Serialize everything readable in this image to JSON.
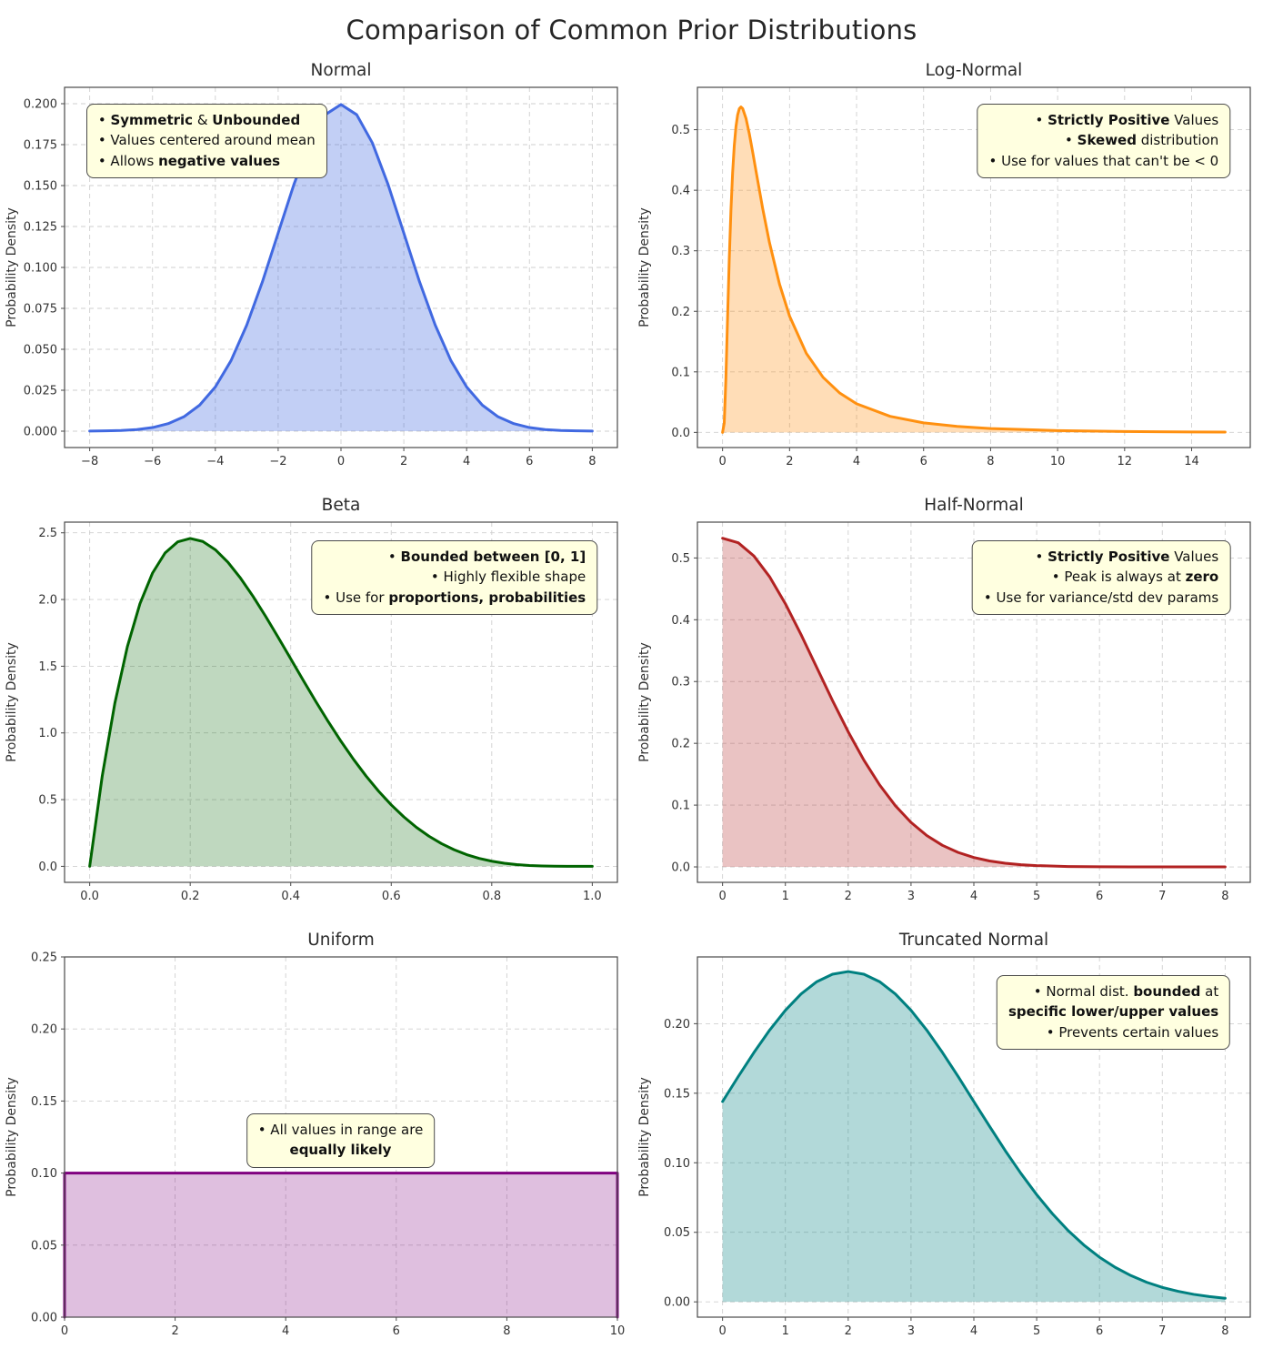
{
  "page": {
    "title": "Comparison of Common Prior Distributions"
  },
  "chart_data": [
    {
      "id": "normal",
      "type": "area",
      "title": "Normal",
      "xlabel": "",
      "ylabel": "Probability Density",
      "grid": true,
      "line_color": "#4169e1",
      "fill_color": "#4169e1",
      "fill_opacity": 0.32,
      "xlim": [
        -8.8,
        8.8
      ],
      "ylim": [
        -0.01,
        0.21
      ],
      "xticks": {
        "values": [
          -8,
          -6,
          -4,
          -2,
          0,
          2,
          4,
          6,
          8
        ],
        "labels": [
          "−8",
          "−6",
          "−4",
          "−2",
          "0",
          "2",
          "4",
          "6",
          "8"
        ]
      },
      "yticks": {
        "values": [
          0,
          0.025,
          0.05,
          0.075,
          0.1,
          0.125,
          0.15,
          0.175,
          0.2
        ],
        "labels": [
          "0.000",
          "0.025",
          "0.050",
          "0.075",
          "0.100",
          "0.125",
          "0.150",
          "0.175",
          "0.200"
        ]
      },
      "x": [
        -8,
        -7.5,
        -7,
        -6.5,
        -6,
        -5.5,
        -5,
        -4.5,
        -4,
        -3.5,
        -3,
        -2.5,
        -2,
        -1.5,
        -1,
        -0.5,
        0,
        0.5,
        1,
        1.5,
        2,
        2.5,
        3,
        3.5,
        4,
        4.5,
        5,
        5.5,
        6,
        6.5,
        7,
        7.5,
        8
      ],
      "y": [
        0.0001,
        0.0002,
        0.0004,
        0.001,
        0.0022,
        0.0046,
        0.0088,
        0.0159,
        0.027,
        0.0431,
        0.0648,
        0.0913,
        0.121,
        0.1506,
        0.176,
        0.1933,
        0.1995,
        0.1933,
        0.176,
        0.1506,
        0.121,
        0.0913,
        0.0648,
        0.0431,
        0.027,
        0.0159,
        0.0088,
        0.0046,
        0.0022,
        0.001,
        0.0004,
        0.0002,
        0.0001
      ],
      "annotation": {
        "anchor": "tl",
        "fx": 0.04,
        "fy": 0.955,
        "align": "left",
        "lines": [
          [
            {
              "t": "• ",
              "b": false
            },
            {
              "t": "Symmetric",
              "b": true
            },
            {
              "t": " & ",
              "b": false
            },
            {
              "t": "Unbounded",
              "b": true
            }
          ],
          [
            {
              "t": "• Values centered around mean",
              "b": false
            }
          ],
          [
            {
              "t": "• Allows ",
              "b": false
            },
            {
              "t": "negative values",
              "b": true
            }
          ]
        ]
      }
    },
    {
      "id": "lognormal",
      "type": "area",
      "title": "Log-Normal",
      "xlabel": "",
      "ylabel": "Probability Density",
      "grid": true,
      "line_color": "#ff9010",
      "fill_color": "#ff9010",
      "fill_opacity": 0.3,
      "xlim": [
        -0.75,
        15.75
      ],
      "ylim": [
        -0.025,
        0.57
      ],
      "xticks": {
        "values": [
          0,
          2,
          4,
          6,
          8,
          10,
          12,
          14
        ],
        "labels": [
          "0",
          "2",
          "4",
          "6",
          "8",
          "10",
          "12",
          "14"
        ]
      },
      "yticks": {
        "values": [
          0,
          0.1,
          0.2,
          0.3,
          0.4,
          0.5
        ],
        "labels": [
          "0.0",
          "0.1",
          "0.2",
          "0.3",
          "0.4",
          "0.5"
        ]
      },
      "x": [
        0,
        0.05,
        0.1,
        0.15,
        0.2,
        0.25,
        0.3,
        0.35,
        0.4,
        0.45,
        0.5,
        0.55,
        0.6,
        0.7,
        0.8,
        0.9,
        1,
        1.2,
        1.4,
        1.7,
        2,
        2.5,
        3,
        3.5,
        4,
        5,
        6,
        7,
        8,
        10,
        12,
        14,
        15
      ],
      "y": [
        0,
        0.0154,
        0.0894,
        0.1897,
        0.2859,
        0.3663,
        0.4284,
        0.4739,
        0.5049,
        0.5244,
        0.5346,
        0.5376,
        0.535,
        0.5186,
        0.4929,
        0.4628,
        0.4312,
        0.3692,
        0.3136,
        0.2449,
        0.1921,
        0.1306,
        0.091,
        0.0649,
        0.0473,
        0.0266,
        0.0158,
        0.0099,
        0.0064,
        0.003,
        0.0015,
        0.0008,
        0.0006
      ],
      "annotation": {
        "anchor": "tr",
        "fx": 0.965,
        "fy": 0.955,
        "align": "right",
        "lines": [
          [
            {
              "t": "• ",
              "b": false
            },
            {
              "t": "Strictly Positive",
              "b": true
            },
            {
              "t": " Values",
              "b": false
            }
          ],
          [
            {
              "t": "• ",
              "b": false
            },
            {
              "t": "Skewed",
              "b": true
            },
            {
              "t": " distribution",
              "b": false
            }
          ],
          [
            {
              "t": "• Use for values that can't be < 0",
              "b": false
            }
          ]
        ]
      }
    },
    {
      "id": "beta",
      "type": "area",
      "title": "Beta",
      "xlabel": "",
      "ylabel": "Probability Density",
      "grid": true,
      "line_color": "#006400",
      "fill_color": "#006400",
      "fill_opacity": 0.25,
      "xlim": [
        -0.05,
        1.05
      ],
      "ylim": [
        -0.12,
        2.58
      ],
      "xticks": {
        "values": [
          0,
          0.2,
          0.4,
          0.6,
          0.8,
          1.0
        ],
        "labels": [
          "0.0",
          "0.2",
          "0.4",
          "0.6",
          "0.8",
          "1.0"
        ]
      },
      "yticks": {
        "values": [
          0,
          0.5,
          1,
          1.5,
          2,
          2.5
        ],
        "labels": [
          "0.0",
          "0.5",
          "1.0",
          "1.5",
          "2.0",
          "2.5"
        ]
      },
      "x": [
        0,
        0.025,
        0.05,
        0.075,
        0.1,
        0.125,
        0.15,
        0.175,
        0.2,
        0.225,
        0.25,
        0.275,
        0.3,
        0.325,
        0.35,
        0.375,
        0.4,
        0.425,
        0.45,
        0.475,
        0.5,
        0.525,
        0.55,
        0.575,
        0.6,
        0.625,
        0.65,
        0.675,
        0.7,
        0.725,
        0.75,
        0.775,
        0.8,
        0.825,
        0.85,
        0.875,
        0.9,
        0.925,
        0.95,
        0.975,
        1
      ],
      "y": [
        0,
        0.6778,
        1.2217,
        1.6472,
        1.9683,
        2.1982,
        2.349,
        2.4321,
        2.4576,
        2.4351,
        2.373,
        2.2793,
        2.1609,
        2.024,
        1.8743,
        1.7166,
        1.5552,
        1.3937,
        1.2353,
        1.0826,
        0.9375,
        0.8018,
        0.6766,
        0.5628,
        0.4608,
        0.3708,
        0.2926,
        0.2259,
        0.1701,
        0.1244,
        0.0879,
        0.0596,
        0.0384,
        0.0232,
        0.0129,
        0.0064,
        0.0027,
        0.0009,
        0.0002,
        0.0001,
        0
      ],
      "annotation": {
        "anchor": "tr",
        "fx": 0.965,
        "fy": 0.95,
        "align": "right",
        "lines": [
          [
            {
              "t": "• ",
              "b": false
            },
            {
              "t": "Bounded between [0, 1]",
              "b": true
            }
          ],
          [
            {
              "t": "• Highly flexible shape",
              "b": false
            }
          ],
          [
            {
              "t": "• Use for ",
              "b": false
            },
            {
              "t": "proportions, probabilities",
              "b": true
            }
          ]
        ]
      }
    },
    {
      "id": "halfnormal",
      "type": "area",
      "title": "Half-Normal",
      "xlabel": "",
      "ylabel": "Probability Density",
      "grid": true,
      "line_color": "#b22222",
      "fill_color": "#b22222",
      "fill_opacity": 0.27,
      "xlim": [
        -0.4,
        8.4
      ],
      "ylim": [
        -0.025,
        0.558
      ],
      "xticks": {
        "values": [
          0,
          1,
          2,
          3,
          4,
          5,
          6,
          7,
          8
        ],
        "labels": [
          "0",
          "1",
          "2",
          "3",
          "4",
          "5",
          "6",
          "7",
          "8"
        ]
      },
      "yticks": {
        "values": [
          0,
          0.1,
          0.2,
          0.3,
          0.4,
          0.5
        ],
        "labels": [
          "0.0",
          "0.1",
          "0.2",
          "0.3",
          "0.4",
          "0.5"
        ]
      },
      "x": [
        0,
        0.25,
        0.5,
        0.75,
        1,
        1.25,
        1.5,
        1.75,
        2,
        2.25,
        2.5,
        2.75,
        3,
        3.25,
        3.5,
        3.75,
        4,
        4.25,
        4.5,
        4.75,
        5,
        5.5,
        6,
        6.5,
        7,
        7.5,
        8
      ],
      "y": [
        0.5319,
        0.5246,
        0.5031,
        0.4694,
        0.4259,
        0.3759,
        0.3226,
        0.2693,
        0.2187,
        0.1727,
        0.1327,
        0.0991,
        0.072,
        0.0508,
        0.0349,
        0.0234,
        0.0152,
        0.0096,
        0.0059,
        0.0035,
        0.0021,
        0.0006,
        0.0002,
        0.0001,
        0.0001,
        0,
        0
      ],
      "annotation": {
        "anchor": "tr",
        "fx": 0.965,
        "fy": 0.95,
        "align": "right",
        "lines": [
          [
            {
              "t": "• ",
              "b": false
            },
            {
              "t": "Strictly Positive",
              "b": true
            },
            {
              "t": " Values",
              "b": false
            }
          ],
          [
            {
              "t": "• Peak is always at ",
              "b": false
            },
            {
              "t": "zero",
              "b": true
            }
          ],
          [
            {
              "t": "• Use for variance/std dev params",
              "b": false
            }
          ]
        ]
      }
    },
    {
      "id": "uniform",
      "type": "area",
      "title": "Uniform",
      "xlabel": "",
      "ylabel": "Probability Density",
      "grid": true,
      "line_color": "#800080",
      "fill_color": "#800080",
      "fill_opacity": 0.25,
      "xlim": [
        0,
        10
      ],
      "ylim": [
        0,
        0.25
      ],
      "xticks": {
        "values": [
          0,
          2,
          4,
          6,
          8,
          10
        ],
        "labels": [
          "0",
          "2",
          "4",
          "6",
          "8",
          "10"
        ]
      },
      "yticks": {
        "values": [
          0,
          0.05,
          0.1,
          0.15,
          0.2,
          0.25
        ],
        "labels": [
          "0.00",
          "0.05",
          "0.10",
          "0.15",
          "0.20",
          "0.25"
        ]
      },
      "x": [
        0,
        0,
        10,
        10
      ],
      "y": [
        0,
        0.1,
        0.1,
        0
      ],
      "annotation": {
        "anchor": "c",
        "fx": 0.5,
        "fy": 0.49,
        "align": "center",
        "lines": [
          [
            {
              "t": "• All values in range are",
              "b": false
            }
          ],
          [
            {
              "t": "equally likely",
              "b": true
            }
          ]
        ]
      }
    },
    {
      "id": "truncnormal",
      "type": "area",
      "title": "Truncated Normal",
      "xlabel": "",
      "ylabel": "Probability Density",
      "grid": true,
      "line_color": "#008080",
      "fill_color": "#008080",
      "fill_opacity": 0.3,
      "xlim": [
        -0.4,
        8.4
      ],
      "ylim": [
        -0.011,
        0.248
      ],
      "xticks": {
        "values": [
          0,
          1,
          2,
          3,
          4,
          5,
          6,
          7,
          8
        ],
        "labels": [
          "0",
          "1",
          "2",
          "3",
          "4",
          "5",
          "6",
          "7",
          "8"
        ]
      },
      "yticks": {
        "values": [
          0,
          0.05,
          0.1,
          0.15,
          0.2
        ],
        "labels": [
          "0.00",
          "0.05",
          "0.10",
          "0.15",
          "0.20"
        ]
      },
      "x": [
        0,
        0.25,
        0.5,
        0.75,
        1,
        1.25,
        1.5,
        1.75,
        2,
        2.25,
        2.5,
        2.75,
        3,
        3.25,
        3.5,
        3.75,
        4,
        4.25,
        4.5,
        4.75,
        5,
        5.25,
        5.5,
        5.75,
        6,
        6.25,
        6.5,
        6.75,
        7,
        7.25,
        7.5,
        7.75,
        8
      ],
      "y": [
        0.144,
        0.162,
        0.1793,
        0.1954,
        0.2096,
        0.2214,
        0.2302,
        0.2356,
        0.2375,
        0.2356,
        0.2302,
        0.2214,
        0.2096,
        0.1954,
        0.1793,
        0.162,
        0.144,
        0.1262,
        0.1087,
        0.0923,
        0.0771,
        0.0634,
        0.0513,
        0.0409,
        0.0321,
        0.0248,
        0.0189,
        0.0141,
        0.0104,
        0.0076,
        0.0054,
        0.0038,
        0.0026
      ],
      "annotation": {
        "anchor": "tr",
        "fx": 0.965,
        "fy": 0.95,
        "align": "right",
        "lines": [
          [
            {
              "t": "• Normal dist. ",
              "b": false
            },
            {
              "t": "bounded",
              "b": true
            },
            {
              "t": " at",
              "b": false
            }
          ],
          [
            {
              "t": "specific lower/upper values",
              "b": true
            }
          ],
          [
            {
              "t": "• Prevents certain values",
              "b": false
            }
          ]
        ]
      }
    }
  ]
}
